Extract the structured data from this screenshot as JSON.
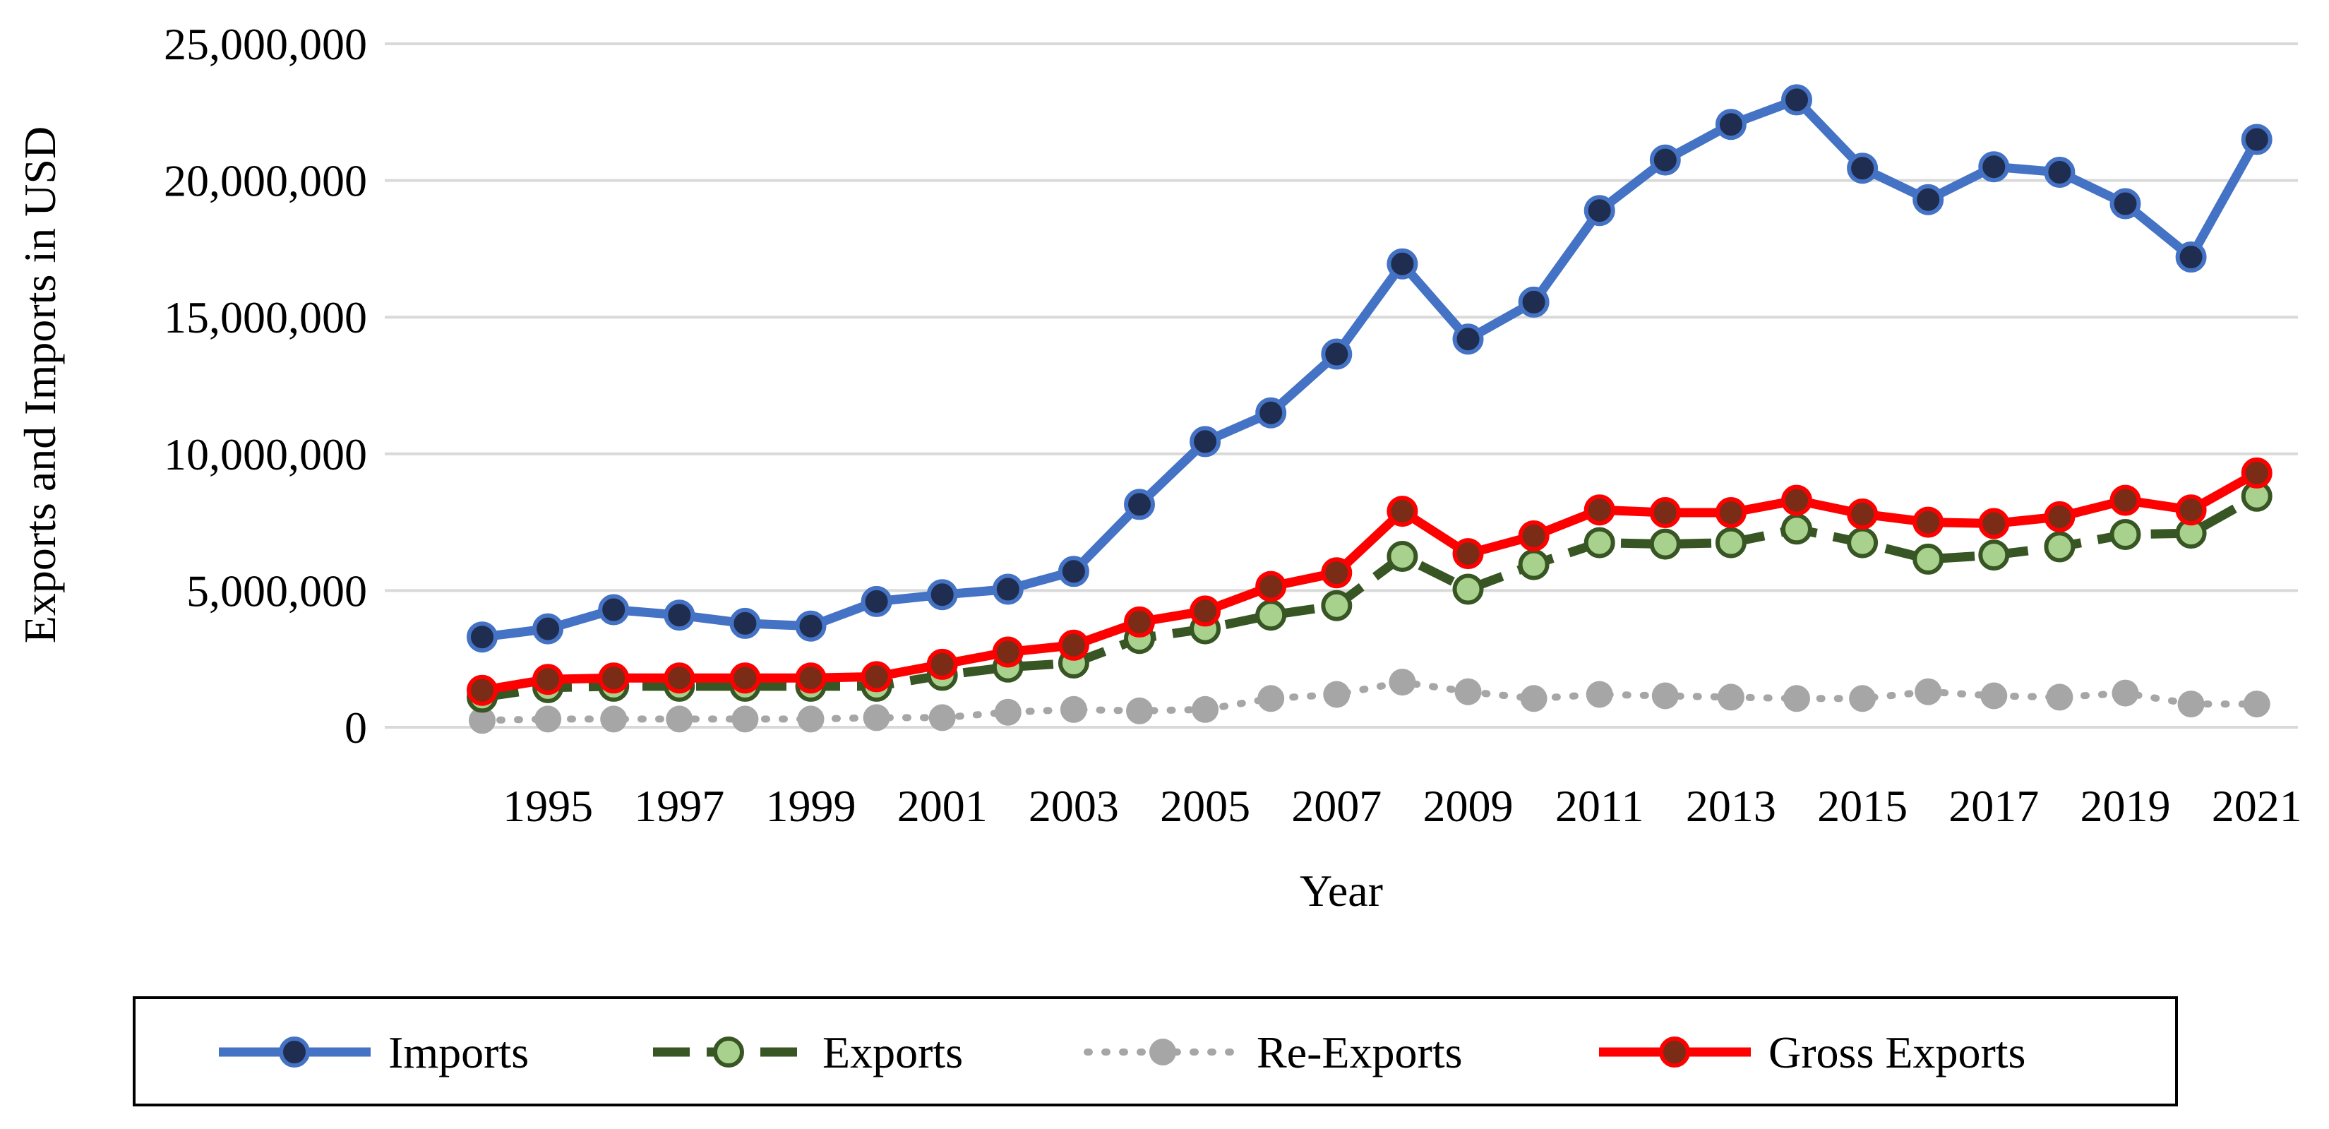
{
  "chart_data": {
    "type": "line",
    "title": "",
    "xlabel": "Year",
    "ylabel": "Exports and Imports in USD",
    "ylim": [
      0,
      25000000
    ],
    "yticks": [
      0,
      5000000,
      10000000,
      15000000,
      20000000,
      25000000
    ],
    "ytick_labels": [
      "0",
      "5,000,000",
      "10,000,000",
      "15,000,000",
      "20,000,000",
      "25,000,000"
    ],
    "xlim": [
      1994,
      2021
    ],
    "xtick_labels": [
      "1995",
      "1997",
      "1999",
      "2001",
      "2003",
      "2005",
      "2007",
      "2009",
      "2011",
      "2013",
      "2015",
      "2017",
      "2019",
      "2021"
    ],
    "grid": "horizontal",
    "legend_position": "bottom",
    "x": [
      1994,
      1995,
      1996,
      1997,
      1998,
      1999,
      2000,
      2001,
      2002,
      2003,
      2004,
      2005,
      2006,
      2007,
      2008,
      2009,
      2010,
      2011,
      2012,
      2013,
      2014,
      2015,
      2016,
      2017,
      2018,
      2019,
      2020,
      2021
    ],
    "series": [
      {
        "name": "Imports",
        "color": "#4472C4",
        "marker_fill": "#1F2D50",
        "line_style": "solid",
        "values": [
          3300000,
          3600000,
          4300000,
          4100000,
          3800000,
          3700000,
          4600000,
          4850000,
          5050000,
          5700000,
          8150000,
          10450000,
          11500000,
          13650000,
          16950000,
          14200000,
          15550000,
          18900000,
          20750000,
          22050000,
          22950000,
          20450000,
          19300000,
          20500000,
          20300000,
          19150000,
          17200000,
          21500000
        ]
      },
      {
        "name": "Exports",
        "color": "#375623",
        "marker_fill": "#A9D18E",
        "line_style": "dashed",
        "values": [
          1100000,
          1450000,
          1500000,
          1500000,
          1500000,
          1500000,
          1500000,
          1900000,
          2200000,
          2350000,
          3250000,
          3600000,
          4100000,
          4450000,
          6250000,
          5050000,
          5950000,
          6750000,
          6700000,
          6750000,
          7250000,
          6750000,
          6150000,
          6300000,
          6600000,
          7050000,
          7100000,
          8450000
        ]
      },
      {
        "name": "Re-Exports",
        "color": "#A6A6A6",
        "marker_fill": "#A6A6A6",
        "line_style": "dotted",
        "values": [
          250000,
          300000,
          300000,
          300000,
          300000,
          300000,
          350000,
          350000,
          550000,
          650000,
          600000,
          650000,
          1050000,
          1200000,
          1650000,
          1300000,
          1050000,
          1200000,
          1150000,
          1100000,
          1050000,
          1050000,
          1300000,
          1150000,
          1100000,
          1250000,
          850000,
          850000
        ]
      },
      {
        "name": "Gross Exports",
        "color": "#FF0000",
        "marker_fill": "#7B2C16",
        "line_style": "solid",
        "values": [
          1350000,
          1750000,
          1800000,
          1800000,
          1800000,
          1800000,
          1850000,
          2300000,
          2750000,
          3000000,
          3850000,
          4250000,
          5150000,
          5650000,
          7900000,
          6350000,
          7000000,
          7950000,
          7850000,
          7850000,
          8300000,
          7800000,
          7500000,
          7450000,
          7700000,
          8300000,
          7950000,
          9300000
        ]
      }
    ]
  }
}
